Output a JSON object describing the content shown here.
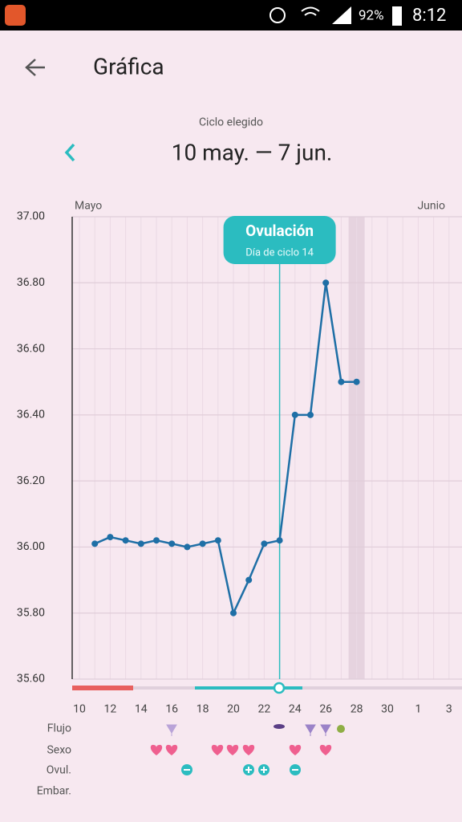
{
  "status_bar": {
    "battery": "92%",
    "time": "8:12"
  },
  "header": {
    "title": "Gráfica"
  },
  "cycle": {
    "caption": "Ciclo elegido",
    "range": "10 may. — 7 jun."
  },
  "chart_data": {
    "type": "line",
    "month_labels": [
      "Mayo",
      "Junio"
    ],
    "annotation": {
      "title": "Ovulación",
      "subtitle": "Día de ciclo 14"
    },
    "categories": [
      "10",
      null,
      "12",
      null,
      "14",
      null,
      "16",
      null,
      "18",
      null,
      "20",
      null,
      "22",
      null,
      "24",
      null,
      "26",
      null,
      "28",
      null,
      "30",
      null,
      "1",
      null,
      "3"
    ],
    "values": [
      null,
      36.01,
      36.03,
      36.02,
      36.01,
      36.02,
      36.01,
      36.0,
      36.01,
      36.02,
      35.8,
      35.9,
      36.01,
      36.02,
      36.4,
      36.4,
      36.8,
      36.5,
      36.5,
      null,
      null,
      null,
      null,
      null,
      null
    ],
    "color": "#1e6fa6",
    "ylim": [
      35.6,
      37.0
    ],
    "yticks": [
      {
        "value": 35.6,
        "label": "35.60"
      },
      {
        "value": 35.8,
        "label": "35.80"
      },
      {
        "value": 36.0,
        "label": "36.00"
      },
      {
        "value": 36.2,
        "label": "36.20"
      },
      {
        "value": 36.4,
        "label": "36.40"
      },
      {
        "value": 36.6,
        "label": "36.60"
      },
      {
        "value": 36.8,
        "label": "36.80"
      },
      {
        "value": 37.0,
        "label": "37.00"
      }
    ],
    "grid": true
  },
  "rows": [
    "Flujo",
    "Sexo",
    "Ovul.",
    "Embar."
  ]
}
